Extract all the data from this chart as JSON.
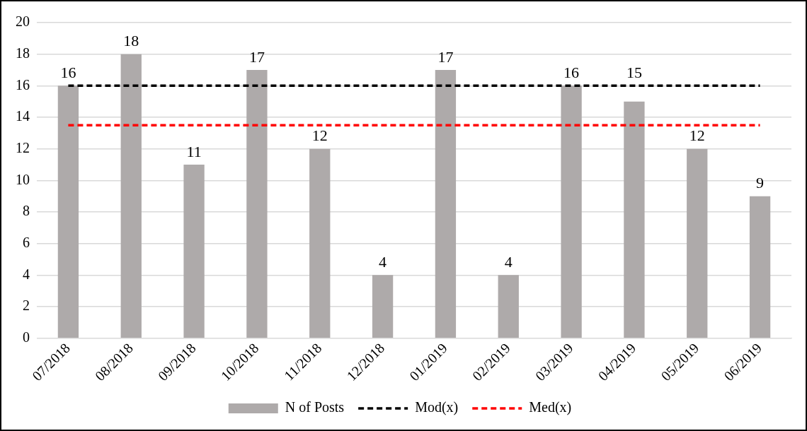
{
  "chart_data": {
    "type": "bar",
    "categories": [
      "07/2018",
      "08/2018",
      "09/2018",
      "10/2018",
      "11/2018",
      "12/2018",
      "01/2019",
      "02/2019",
      "03/2019",
      "04/2019",
      "05/2019",
      "06/2019"
    ],
    "series": [
      {
        "name": "N of Posts",
        "color": "#aeaaaa",
        "values": [
          16,
          18,
          11,
          17,
          12,
          4,
          17,
          4,
          16,
          15,
          12,
          9
        ],
        "value_labels": [
          "16",
          "18",
          "11",
          "17",
          "12",
          "4",
          "17",
          "4",
          "16",
          "15",
          "12",
          "9"
        ]
      },
      {
        "name": "Mod(x)",
        "type": "line",
        "line_style": "dashed",
        "color": "#000000",
        "values": [
          16,
          16,
          16,
          16,
          16,
          16,
          16,
          16,
          16,
          16,
          16,
          16
        ]
      },
      {
        "name": "Med(x)",
        "type": "line",
        "line_style": "dashed",
        "color": "#ff0000",
        "values": [
          13.5,
          13.5,
          13.5,
          13.5,
          13.5,
          13.5,
          13.5,
          13.5,
          13.5,
          13.5,
          13.5,
          13.5
        ]
      }
    ],
    "ylim": [
      0,
      20
    ],
    "yticks": [
      0,
      2,
      4,
      6,
      8,
      10,
      12,
      14,
      16,
      18,
      20
    ],
    "grid": "y",
    "legend": "bottom",
    "marker": "none"
  }
}
